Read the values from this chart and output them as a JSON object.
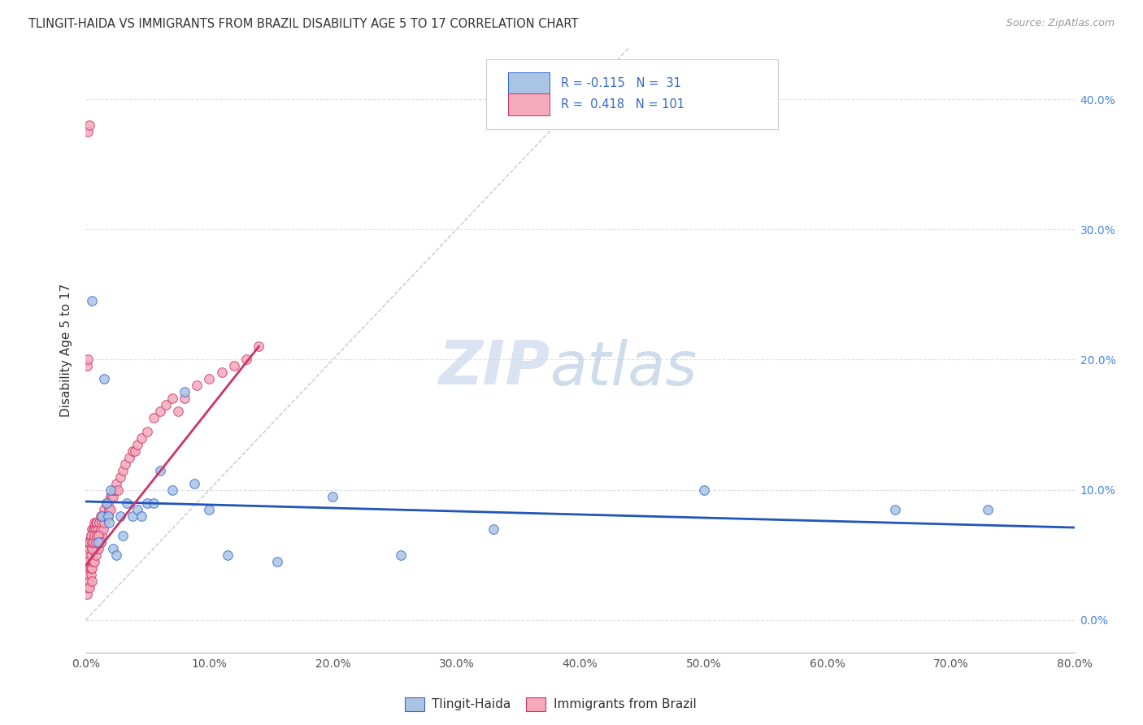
{
  "title": "TLINGIT-HAIDA VS IMMIGRANTS FROM BRAZIL DISABILITY AGE 5 TO 17 CORRELATION CHART",
  "source": "Source: ZipAtlas.com",
  "ylabel": "Disability Age 5 to 17",
  "xlim": [
    0.0,
    0.8
  ],
  "ylim": [
    -0.025,
    0.44
  ],
  "x_ticks": [
    0.0,
    0.1,
    0.2,
    0.3,
    0.4,
    0.5,
    0.6,
    0.7,
    0.8
  ],
  "y_ticks": [
    0.0,
    0.1,
    0.2,
    0.3,
    0.4
  ],
  "legend_r_blue": "-0.115",
  "legend_n_blue": "31",
  "legend_r_pink": "0.418",
  "legend_n_pink": "101",
  "blue_scatter_color": "#aac4e4",
  "blue_edge_color": "#3366cc",
  "pink_scatter_color": "#f4aabb",
  "pink_edge_color": "#cc3366",
  "blue_line_color": "#2255bb",
  "pink_line_color": "#cc3366",
  "diagonal_color": "#c8c8c8",
  "grid_color": "#e0e0e0",
  "watermark_zip_color": "#ccd8ee",
  "watermark_atlas_color": "#a8c0dc",
  "right_tick_color": "#4488dd",
  "tlingit_x": [
    0.005,
    0.01,
    0.013,
    0.015,
    0.017,
    0.018,
    0.019,
    0.02,
    0.022,
    0.025,
    0.028,
    0.03,
    0.033,
    0.038,
    0.042,
    0.045,
    0.05,
    0.055,
    0.06,
    0.07,
    0.08,
    0.088,
    0.1,
    0.115,
    0.155,
    0.2,
    0.255,
    0.33,
    0.5,
    0.655,
    0.73
  ],
  "tlingit_y": [
    0.245,
    0.06,
    0.08,
    0.185,
    0.09,
    0.08,
    0.075,
    0.1,
    0.055,
    0.05,
    0.08,
    0.065,
    0.09,
    0.08,
    0.085,
    0.08,
    0.09,
    0.09,
    0.115,
    0.1,
    0.175,
    0.105,
    0.085,
    0.05,
    0.045,
    0.095,
    0.05,
    0.07,
    0.1,
    0.085,
    0.085
  ],
  "brazil_x": [
    0.001,
    0.001,
    0.001,
    0.002,
    0.002,
    0.002,
    0.002,
    0.003,
    0.003,
    0.003,
    0.003,
    0.003,
    0.004,
    0.004,
    0.004,
    0.004,
    0.004,
    0.005,
    0.005,
    0.005,
    0.005,
    0.005,
    0.006,
    0.006,
    0.006,
    0.006,
    0.007,
    0.007,
    0.007,
    0.007,
    0.007,
    0.008,
    0.008,
    0.008,
    0.008,
    0.009,
    0.009,
    0.009,
    0.01,
    0.01,
    0.01,
    0.011,
    0.011,
    0.012,
    0.012,
    0.012,
    0.013,
    0.013,
    0.014,
    0.014,
    0.015,
    0.015,
    0.016,
    0.017,
    0.017,
    0.018,
    0.018,
    0.019,
    0.02,
    0.02,
    0.021,
    0.022,
    0.023,
    0.024,
    0.025,
    0.026,
    0.028,
    0.03,
    0.032,
    0.035,
    0.038,
    0.04,
    0.042,
    0.045,
    0.05,
    0.055,
    0.06,
    0.065,
    0.07,
    0.075,
    0.08,
    0.09,
    0.1,
    0.11,
    0.12,
    0.13,
    0.14,
    0.002,
    0.003,
    0.003,
    0.004,
    0.005,
    0.005,
    0.006,
    0.007,
    0.008,
    0.009,
    0.01,
    0.012,
    0.001,
    0.002
  ],
  "brazil_y": [
    0.05,
    0.04,
    0.02,
    0.035,
    0.025,
    0.045,
    0.06,
    0.03,
    0.025,
    0.04,
    0.055,
    0.06,
    0.035,
    0.04,
    0.05,
    0.06,
    0.065,
    0.03,
    0.04,
    0.055,
    0.06,
    0.07,
    0.045,
    0.055,
    0.065,
    0.07,
    0.045,
    0.055,
    0.065,
    0.07,
    0.075,
    0.05,
    0.06,
    0.07,
    0.075,
    0.055,
    0.065,
    0.075,
    0.055,
    0.065,
    0.07,
    0.065,
    0.075,
    0.06,
    0.07,
    0.08,
    0.065,
    0.075,
    0.07,
    0.08,
    0.075,
    0.085,
    0.08,
    0.08,
    0.09,
    0.08,
    0.09,
    0.085,
    0.085,
    0.095,
    0.095,
    0.095,
    0.1,
    0.1,
    0.105,
    0.1,
    0.11,
    0.115,
    0.12,
    0.125,
    0.13,
    0.13,
    0.135,
    0.14,
    0.145,
    0.155,
    0.16,
    0.165,
    0.17,
    0.16,
    0.17,
    0.18,
    0.185,
    0.19,
    0.195,
    0.2,
    0.21,
    0.375,
    0.38,
    0.06,
    0.065,
    0.055,
    0.06,
    0.06,
    0.065,
    0.06,
    0.065,
    0.065,
    0.06,
    0.195,
    0.2
  ]
}
